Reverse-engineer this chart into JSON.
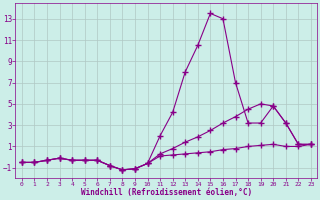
{
  "xlabel": "Windchill (Refroidissement éolien,°C)",
  "bg_color": "#cceee8",
  "grid_color": "#b0c8c4",
  "line_color": "#880088",
  "xlim": [
    -0.5,
    23.5
  ],
  "ylim": [
    -2.0,
    14.5
  ],
  "xticks": [
    0,
    1,
    2,
    3,
    4,
    5,
    6,
    7,
    8,
    9,
    10,
    11,
    12,
    13,
    14,
    15,
    16,
    17,
    18,
    19,
    20,
    21,
    22,
    23
  ],
  "yticks": [
    -1,
    1,
    3,
    5,
    7,
    9,
    11,
    13
  ],
  "line1_x": [
    0,
    1,
    2,
    3,
    4,
    5,
    6,
    7,
    8,
    9,
    10,
    11,
    12,
    13,
    14,
    15,
    16,
    17,
    18,
    19,
    20,
    21,
    22,
    23
  ],
  "line1_y": [
    -0.5,
    -0.5,
    -0.3,
    -0.1,
    -0.3,
    -0.3,
    -0.3,
    -0.8,
    -1.2,
    -1.1,
    -0.6,
    2.0,
    4.2,
    8.0,
    10.5,
    13.5,
    13.0,
    7.0,
    3.2,
    3.2,
    4.8,
    3.2,
    1.2,
    1.2
  ],
  "line2_x": [
    0,
    1,
    2,
    3,
    4,
    5,
    6,
    7,
    8,
    9,
    10,
    11,
    12,
    13,
    14,
    15,
    16,
    17,
    18,
    19,
    20,
    21,
    22,
    23
  ],
  "line2_y": [
    -0.5,
    -0.5,
    -0.3,
    -0.1,
    -0.3,
    -0.3,
    -0.3,
    -0.8,
    -1.2,
    -1.1,
    -0.6,
    0.3,
    0.8,
    1.4,
    1.9,
    2.5,
    3.2,
    3.8,
    4.5,
    5.0,
    4.8,
    3.2,
    1.2,
    1.2
  ],
  "line3_x": [
    0,
    1,
    2,
    3,
    4,
    5,
    6,
    7,
    8,
    9,
    10,
    11,
    12,
    13,
    14,
    15,
    16,
    17,
    18,
    19,
    20,
    21,
    22,
    23
  ],
  "line3_y": [
    -0.5,
    -0.5,
    -0.3,
    -0.1,
    -0.3,
    -0.3,
    -0.3,
    -0.8,
    -1.2,
    -1.1,
    -0.6,
    0.1,
    0.2,
    0.3,
    0.4,
    0.5,
    0.7,
    0.8,
    1.0,
    1.1,
    1.2,
    1.0,
    1.0,
    1.2
  ]
}
